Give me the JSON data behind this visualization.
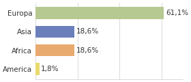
{
  "categories": [
    "Europa",
    "Asia",
    "Africa",
    "America"
  ],
  "values": [
    61.1,
    18.6,
    18.6,
    1.8
  ],
  "bar_colors": [
    "#b5c990",
    "#6b80bb",
    "#e8aa6e",
    "#e8d96e"
  ],
  "labels": [
    "61,1%",
    "18,6%",
    "18,6%",
    "1,8%"
  ],
  "xlim": [
    0,
    70
  ],
  "background_color": "#ffffff",
  "label_fontsize": 7.5,
  "tick_fontsize": 7.5
}
